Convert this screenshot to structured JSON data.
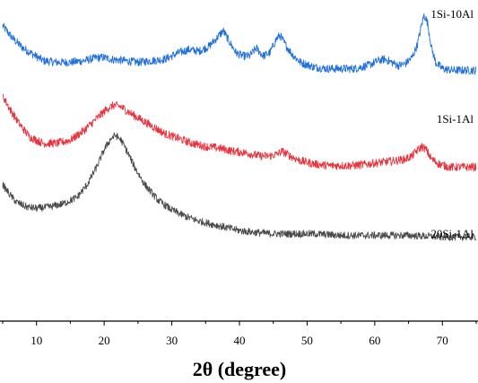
{
  "chart_data": {
    "type": "line",
    "title": "",
    "xlabel": "2θ (degree)",
    "ylabel": "",
    "xlim": [
      5,
      75
    ],
    "ylim": [
      0,
      100
    ],
    "y_axis_shown": false,
    "grid": false,
    "legend": "inline labels at right end of each curve",
    "x_ticks": [
      "10",
      "20",
      "30",
      "40",
      "50",
      "60",
      "70"
    ],
    "series": [
      {
        "name": "1Si-10Al",
        "color": "#1f6fdd",
        "x": [
          5,
          6.5,
          8,
          9.5,
          11,
          13,
          15,
          17,
          19,
          20,
          21,
          23,
          25,
          27,
          29,
          31,
          32.5,
          34,
          35.5,
          36.8,
          37.6,
          38.5,
          39.5,
          40.5,
          41.5,
          42.5,
          43.5,
          44.5,
          45.5,
          46,
          46.8,
          47.8,
          49,
          51,
          53,
          55,
          57,
          59,
          60.5,
          61.5,
          62.5,
          63.5,
          64.5,
          65.5,
          66.3,
          66.9,
          67.3,
          67.8,
          68.4,
          69,
          70,
          71.5,
          73,
          75
        ],
        "values": [
          93,
          89,
          86,
          84,
          82,
          81.5,
          81.5,
          82,
          83,
          83,
          82.5,
          82,
          81.5,
          82,
          82.5,
          84.5,
          85.5,
          85,
          86.5,
          89.5,
          91.5,
          88,
          84.5,
          83.5,
          83.5,
          86,
          83.5,
          84.5,
          89,
          90,
          87,
          84,
          81.5,
          80,
          79.5,
          79.5,
          79.5,
          80.5,
          82,
          82.5,
          81.5,
          80.5,
          81,
          83,
          87,
          93,
          96.5,
          94,
          86,
          81.5,
          79.5,
          79,
          79,
          79
        ]
      },
      {
        "name": "1Si-1Al",
        "color": "#e8323c",
        "x": [
          5,
          6,
          7.5,
          9,
          11,
          13,
          15,
          17,
          19,
          20.5,
          21.5,
          22.5,
          23.5,
          25,
          27,
          29,
          31,
          33,
          35,
          37,
          39,
          41,
          43,
          44.5,
          45.5,
          46.3,
          47.5,
          49,
          51,
          53,
          55,
          57,
          59,
          61,
          63,
          64.5,
          65.5,
          66.4,
          67,
          67.6,
          68.4,
          69.5,
          71,
          73,
          75
        ],
        "values": [
          71,
          67,
          62,
          58,
          56,
          56,
          57,
          60,
          64,
          67,
          68,
          67.5,
          66,
          64,
          61.5,
          59,
          57.5,
          56,
          55,
          54.5,
          53.5,
          53,
          52,
          52,
          52.5,
          53.5,
          52,
          50.5,
          49.5,
          49,
          49,
          49,
          49.5,
          50,
          50.5,
          51,
          52,
          54,
          55,
          54,
          51,
          49.5,
          48.5,
          48.5,
          48.5
        ]
      },
      {
        "name": "20Si-1Al",
        "color": "#4a4a4a",
        "x": [
          5,
          6,
          7,
          8.5,
          10,
          12,
          14,
          16,
          17.5,
          19,
          20,
          21,
          21.7,
          22.5,
          23.5,
          24.5,
          26,
          28,
          30,
          32,
          34,
          36,
          38,
          40,
          42,
          45,
          48,
          51,
          55,
          60,
          65,
          70,
          75
        ],
        "values": [
          43,
          40,
          37.5,
          36,
          35.5,
          36,
          37,
          39,
          43,
          49,
          54,
          57.5,
          58.5,
          57,
          53,
          48.5,
          43,
          38,
          35,
          33,
          31.5,
          30.5,
          29.5,
          28.5,
          28,
          27.5,
          27.5,
          27.5,
          27,
          27,
          27,
          26.5,
          26.5
        ]
      }
    ]
  }
}
